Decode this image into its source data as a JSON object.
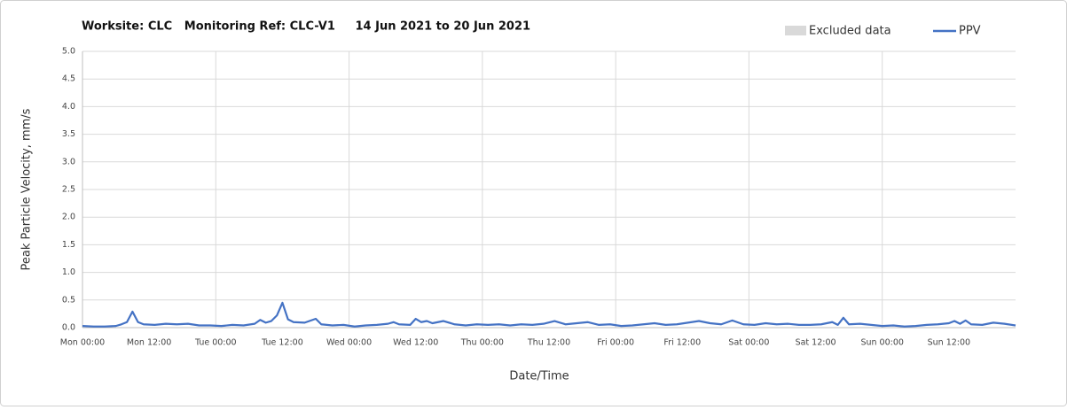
{
  "chart_data": {
    "type": "line",
    "title": "Worksite: CLC   Monitoring Ref: CLC-V1     14 Jun 2021 to 20 Jun 2021",
    "xlabel": "Date/Time",
    "ylabel": "Peak Particle Velocity, mm/s",
    "excluded_legend": {
      "name": "Excluded data",
      "color": "#d9d9d9"
    },
    "x": [
      0,
      2,
      4,
      6,
      7,
      8,
      9,
      10,
      11,
      13,
      15,
      17,
      19,
      21,
      23,
      25,
      27,
      29,
      31,
      32,
      33,
      34,
      35,
      36,
      37,
      38,
      40,
      42,
      43,
      45,
      47,
      49,
      51,
      53,
      55,
      56,
      57,
      59,
      60,
      61,
      62,
      63,
      65,
      67,
      69,
      71,
      73,
      75,
      77,
      79,
      81,
      83,
      85,
      87,
      89,
      91,
      93,
      95,
      97,
      99,
      101,
      103,
      105,
      107,
      109,
      111,
      113,
      115,
      117,
      119,
      121,
      123,
      125,
      127,
      129,
      131,
      133,
      135,
      136,
      137,
      138,
      140,
      142,
      144,
      146,
      148,
      150,
      152,
      154,
      156,
      157,
      158,
      159,
      160,
      162,
      164,
      166,
      168
    ],
    "series": [
      {
        "name": "PPV",
        "color": "#4472c4",
        "values": [
          0.03,
          0.02,
          0.02,
          0.03,
          0.06,
          0.1,
          0.29,
          0.1,
          0.06,
          0.05,
          0.07,
          0.06,
          0.07,
          0.04,
          0.04,
          0.03,
          0.05,
          0.04,
          0.07,
          0.14,
          0.09,
          0.12,
          0.22,
          0.45,
          0.15,
          0.1,
          0.09,
          0.16,
          0.06,
          0.04,
          0.05,
          0.02,
          0.04,
          0.05,
          0.07,
          0.1,
          0.06,
          0.05,
          0.16,
          0.1,
          0.12,
          0.08,
          0.12,
          0.06,
          0.04,
          0.06,
          0.05,
          0.06,
          0.04,
          0.06,
          0.05,
          0.07,
          0.12,
          0.06,
          0.08,
          0.1,
          0.05,
          0.06,
          0.03,
          0.04,
          0.06,
          0.08,
          0.05,
          0.06,
          0.09,
          0.12,
          0.08,
          0.06,
          0.13,
          0.06,
          0.05,
          0.08,
          0.06,
          0.07,
          0.05,
          0.05,
          0.06,
          0.1,
          0.05,
          0.18,
          0.06,
          0.07,
          0.05,
          0.03,
          0.04,
          0.02,
          0.03,
          0.05,
          0.06,
          0.08,
          0.12,
          0.07,
          0.13,
          0.06,
          0.05,
          0.09,
          0.07,
          0.04
        ]
      }
    ],
    "xlim": [
      0,
      168
    ],
    "xticks": [
      {
        "value": 0,
        "label": "Mon 00:00"
      },
      {
        "value": 12,
        "label": "Mon 12:00"
      },
      {
        "value": 24,
        "label": "Tue 00:00"
      },
      {
        "value": 36,
        "label": "Tue 12:00"
      },
      {
        "value": 48,
        "label": "Wed 00:00"
      },
      {
        "value": 60,
        "label": "Wed 12:00"
      },
      {
        "value": 72,
        "label": "Thu 00:00"
      },
      {
        "value": 84,
        "label": "Thu 12:00"
      },
      {
        "value": 96,
        "label": "Fri 00:00"
      },
      {
        "value": 108,
        "label": "Fri 12:00"
      },
      {
        "value": 120,
        "label": "Sat 00:00"
      },
      {
        "value": 132,
        "label": "Sat 12:00"
      },
      {
        "value": 144,
        "label": "Sun 00:00"
      },
      {
        "value": 156,
        "label": "Sun 12:00"
      }
    ],
    "ylim": [
      0,
      5
    ],
    "yticks": [
      {
        "value": 0,
        "label": "0.0"
      },
      0.5,
      {
        "value": 1,
        "label": "1.0"
      },
      1.5,
      {
        "value": 2,
        "label": "2.0"
      },
      2.5,
      {
        "value": 3,
        "label": "3.0"
      },
      3.5,
      {
        "value": 4,
        "label": "4.0"
      },
      4.5,
      {
        "value": 5,
        "label": "5.0"
      }
    ],
    "grid": true,
    "x_grid_every": 24
  }
}
